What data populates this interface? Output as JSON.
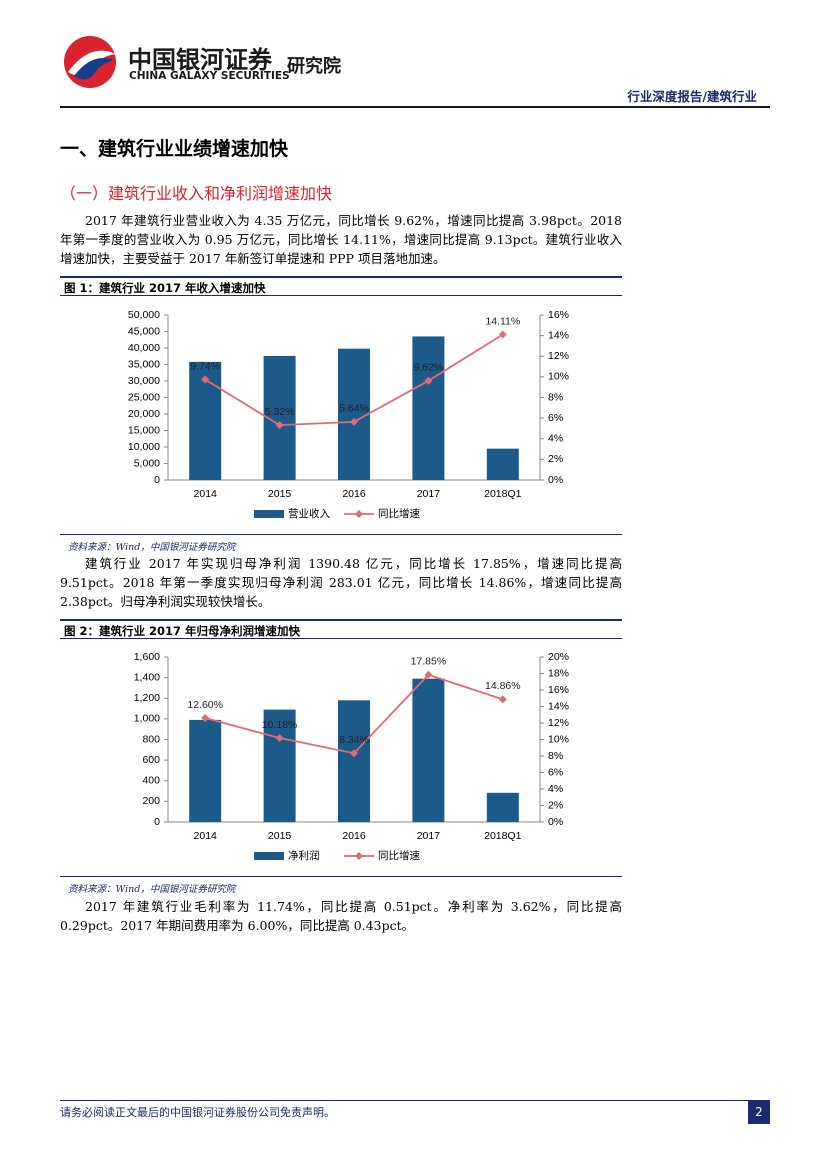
{
  "header": {
    "logo_cn": "中国银河证券",
    "logo_en": "CHINA GALAXY SECURITIES",
    "institute": "研究院",
    "report_type": "行业深度报告/建筑行业"
  },
  "section_title": "一、建筑行业业绩增速加快",
  "subsection_title": "（一）建筑行业收入和净利润增速加快",
  "paragraphs": [
    "2017 年建筑行业营业收入为 4.35 万亿元，同比增长 9.62%，增速同比提高 3.98pct。2018 年第一季度的营业收入为 0.95 万亿元，同比增长 14.11%，增速同比提高 9.13pct。建筑行业收入增速加快，主要受益于 2017 年新签订单提速和 PPP 项目落地加速。",
    "建筑行业 2017 年实现归母净利润 1390.48 亿元，同比增长 17.85%，增速同比提高 9.51pct。2018 年第一季度实现归母净利润 283.01 亿元，同比增长 14.86%，增速同比提高 2.38pct。归母净利润实现较快增长。",
    "2017 年建筑行业毛利率为 11.74%，同比提高 0.51pct。净利率为 3.62%，同比提高 0.29pct。2017 年期间费用率为 6.00%，同比提高 0.43pct。"
  ],
  "chart_data": [
    {
      "type": "bar",
      "title": "图 1：建筑行业 2017 年收入增速加快",
      "source": "资料来源：Wind，中国银河证券研究院",
      "categories": [
        "2014",
        "2015",
        "2016",
        "2017",
        "2018Q1"
      ],
      "series": [
        {
          "name": "营业收入",
          "color": "#1c5a8a",
          "values": [
            35800,
            37600,
            39800,
            43500,
            9500
          ]
        },
        {
          "name": "同比增速",
          "color": "#e06b73",
          "axis": "y2",
          "values": [
            9.74,
            5.32,
            5.64,
            9.62,
            14.11
          ],
          "value_labels": [
            "9.74%",
            "5.32%",
            "5.64%",
            "9.62%",
            "14.11%"
          ]
        }
      ],
      "ylim": [
        0,
        50000
      ],
      "yticks": [
        0,
        {
          "value": 5000,
          "label": "5,000"
        },
        {
          "value": 10000,
          "label": "10,000"
        },
        {
          "value": 15000,
          "label": "15,000"
        },
        {
          "value": 20000,
          "label": "20,000"
        },
        {
          "value": 25000,
          "label": "25,000"
        },
        {
          "value": 30000,
          "label": "30,000"
        },
        {
          "value": 35000,
          "label": "35,000"
        },
        {
          "value": 40000,
          "label": "40,000"
        },
        {
          "value": 45000,
          "label": "45,000"
        },
        {
          "value": 50000,
          "label": "50,000"
        }
      ],
      "y2lim": [
        0,
        16
      ],
      "y2ticks": [
        {
          "value": 0,
          "label": "0%"
        },
        {
          "value": 2,
          "label": "2%"
        },
        {
          "value": 4,
          "label": "4%"
        },
        {
          "value": 6,
          "label": "6%"
        },
        {
          "value": 8,
          "label": "8%"
        },
        {
          "value": 10,
          "label": "10%"
        },
        {
          "value": 12,
          "label": "12%"
        },
        {
          "value": 14,
          "label": "14%"
        },
        {
          "value": 16,
          "label": "16%"
        }
      ],
      "legend": "bottom"
    },
    {
      "type": "bar",
      "title": "图 2：建筑行业 2017 年归母净利润增速加快",
      "source": "资料来源：Wind，中国银河证券研究院",
      "categories": [
        "2014",
        "2015",
        "2016",
        "2017",
        "2018Q1"
      ],
      "series": [
        {
          "name": "净利润",
          "color": "#1c5a8a",
          "values": [
            990,
            1090,
            1180,
            1390,
            283
          ]
        },
        {
          "name": "同比增速",
          "color": "#e06b73",
          "axis": "y2",
          "values": [
            12.6,
            10.18,
            8.34,
            17.85,
            14.86
          ],
          "value_labels": [
            "12.60%",
            "10.18%",
            "8.34%",
            "17.85%",
            "14.86%"
          ]
        }
      ],
      "ylim": [
        0,
        1600
      ],
      "yticks": [
        0,
        200,
        400,
        600,
        800,
        {
          "value": 1000,
          "label": "1,000"
        },
        {
          "value": 1200,
          "label": "1,200"
        },
        {
          "value": 1400,
          "label": "1,400"
        },
        {
          "value": 1600,
          "label": "1,600"
        }
      ],
      "y2lim": [
        0,
        20
      ],
      "y2ticks": [
        {
          "value": 0,
          "label": "0%"
        },
        {
          "value": 2,
          "label": "2%"
        },
        {
          "value": 4,
          "label": "4%"
        },
        {
          "value": 6,
          "label": "6%"
        },
        {
          "value": 8,
          "label": "8%"
        },
        {
          "value": 10,
          "label": "10%"
        },
        {
          "value": 12,
          "label": "12%"
        },
        {
          "value": 14,
          "label": "14%"
        },
        {
          "value": 16,
          "label": "16%"
        },
        {
          "value": 18,
          "label": "18%"
        },
        {
          "value": 20,
          "label": "20%"
        }
      ],
      "legend": "bottom"
    }
  ],
  "footer": {
    "disclaimer": "请务必阅读正文最后的中国银河证券股份公司免责声明。",
    "page_number": "2"
  }
}
